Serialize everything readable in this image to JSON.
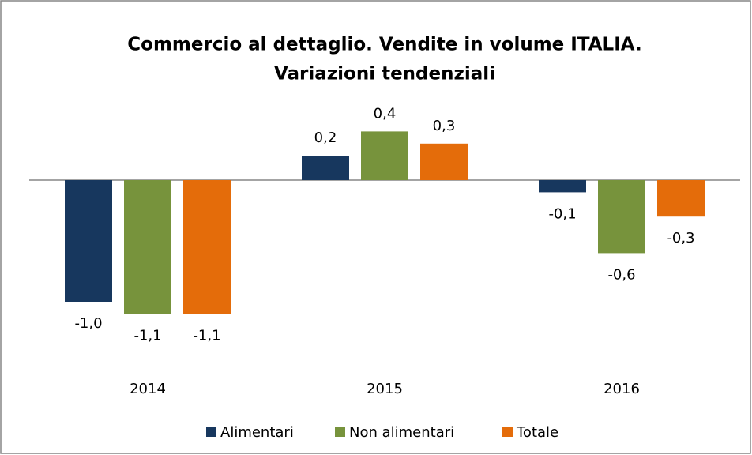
{
  "chart_data": {
    "type": "bar",
    "title": [
      "Commercio al dettaglio. Vendite in volume  ITALIA.",
      "Variazioni tendenziali"
    ],
    "categories": [
      "2014",
      "2015",
      "2016"
    ],
    "series": [
      {
        "name": "Alimentari",
        "color": "#17375e",
        "values": [
          -1.0,
          0.2,
          -0.1
        ],
        "value_labels": [
          "-1,0",
          "0,2",
          "-0,1"
        ]
      },
      {
        "name": "Non alimentari",
        "color": "#77933c",
        "values": [
          -1.1,
          0.4,
          -0.6
        ],
        "value_labels": [
          "-1,1",
          "0,4",
          "-0,6"
        ]
      },
      {
        "name": "Totale",
        "color": "#e46c0a",
        "values": [
          -1.1,
          0.3,
          -0.3
        ],
        "value_labels": [
          "-1,1",
          "0,3",
          "-0,3"
        ]
      }
    ],
    "legend": "bottom"
  }
}
